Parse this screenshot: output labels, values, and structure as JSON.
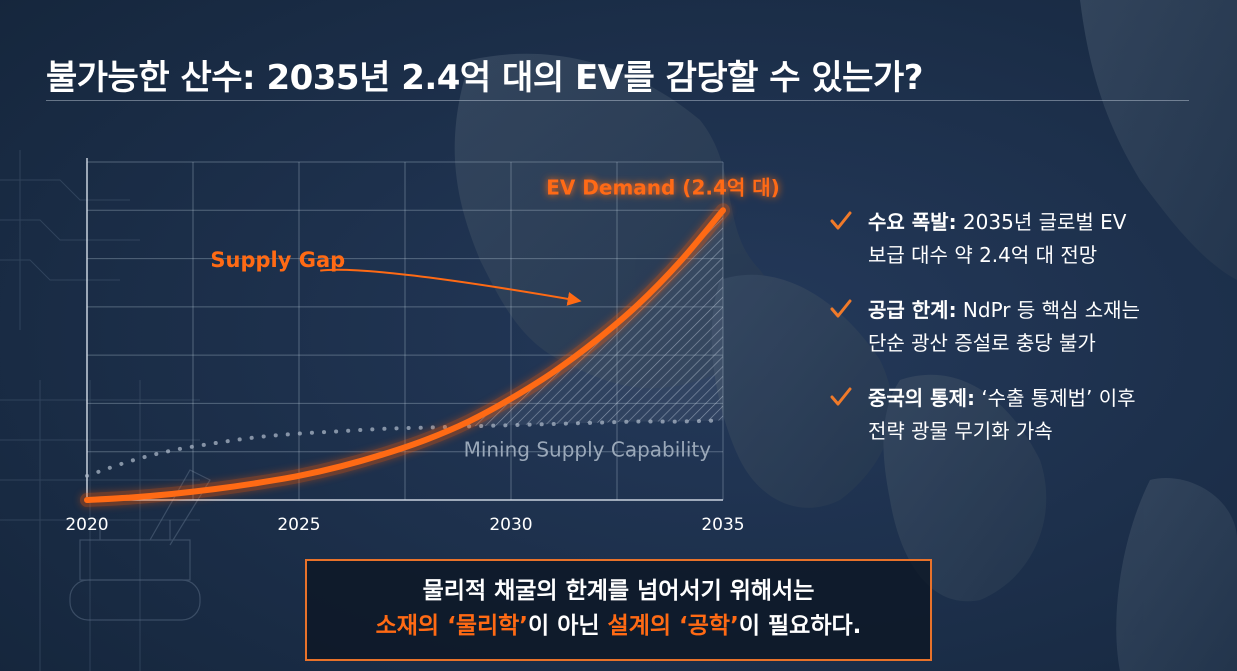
{
  "title": "불가능한 산수: 2035년 2.4억 대의 EV를 감당할 수 있는가?",
  "bullets": [
    {
      "head": "수요 폭발:",
      "line1": " 2035년 글로벌 EV",
      "line2": "보급 대수 약 2.4억 대 전망"
    },
    {
      "head": "공급 한계:",
      "line1": " NdPr 등 핵심 소재는",
      "line2": "단순 광산 증설로 충당 불가"
    },
    {
      "head": "중국의 통제:",
      "line1": " ‘수출 통제법’ 이후",
      "line2": "전략 광물 무기화 가속"
    }
  ],
  "callout": {
    "line1": "물리적 채굴의 한계를 넘어서기 위해서는",
    "line2": [
      {
        "text": "소재의 ‘물리학’",
        "highlight": true
      },
      {
        "text": "이 아닌 ",
        "highlight": false
      },
      {
        "text": "설계의 ‘공학’",
        "highlight": true
      },
      {
        "text": "이 필요하다.",
        "highlight": false
      }
    ]
  },
  "colors": {
    "accent": "#ff6a14",
    "check": "#f07a2a",
    "background": "#1b2d45",
    "supply_line": "#a9b6c6"
  },
  "icons": [
    "check-icon"
  ],
  "chart_data": {
    "type": "line",
    "x_ticks": [
      "2020",
      "2025",
      "2030",
      "2035"
    ],
    "xlim": [
      2020,
      2035
    ],
    "ylim": [
      0,
      2.8
    ],
    "grid": true,
    "series": [
      {
        "name": "EV Demand (2.4억 대)",
        "style": "solid-glow",
        "x": [
          2020,
          2021,
          2022,
          2023,
          2024,
          2025,
          2026,
          2027,
          2028,
          2029,
          2030,
          2031,
          2032,
          2033,
          2034,
          2035
        ],
        "y": [
          0.0,
          0.02,
          0.05,
          0.09,
          0.14,
          0.2,
          0.28,
          0.38,
          0.5,
          0.65,
          0.84,
          1.06,
          1.32,
          1.62,
          1.98,
          2.4
        ]
      },
      {
        "name": "Mining Supply Capability",
        "style": "dotted",
        "x": [
          2020,
          2021,
          2022,
          2023,
          2024,
          2025,
          2026,
          2027,
          2028,
          2029,
          2030,
          2031,
          2032,
          2033,
          2034,
          2035
        ],
        "y": [
          0.2,
          0.32,
          0.41,
          0.47,
          0.52,
          0.55,
          0.57,
          0.59,
          0.6,
          0.61,
          0.62,
          0.63,
          0.64,
          0.65,
          0.65,
          0.66
        ]
      }
    ],
    "annotations": [
      {
        "text": "Supply Gap",
        "target": "gap between EV Demand and Mining Supply Capability",
        "x_start": 2028.5
      }
    ]
  }
}
